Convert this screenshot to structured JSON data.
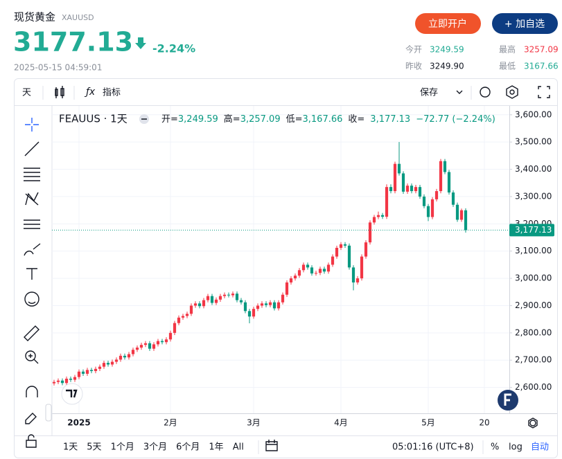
{
  "header": {
    "name": "现货黄金",
    "code": "XAUUSD",
    "price": "3177.13",
    "change": "-2.24%",
    "time": "2025-05-15 04:59:01",
    "buttons": [
      "立即开户",
      "+ 加自选"
    ],
    "stats": [
      {
        "label": "今开",
        "value": "3249.59"
      },
      {
        "label": "最高",
        "value": "3257.09"
      },
      {
        "label": "昨收",
        "value": "3249.90"
      },
      {
        "label": "最低",
        "value": "3167.66"
      }
    ]
  },
  "toolbar": {
    "interval": "天",
    "indicators": "指标",
    "save": "保存"
  },
  "legend": {
    "symbol": "FEAUUS · 1天",
    "items": [
      "开=",
      "3,249.59",
      "高=",
      "3,257.09",
      "低=",
      "3,167.66",
      "收=",
      "3,177.13"
    ],
    "change": "−72.77 (−2.24%)"
  },
  "bottom": {
    "ranges": [
      "1天",
      "5天",
      "1个月",
      "3个月",
      "6个月",
      "1年",
      "All"
    ],
    "clock": "05:01:16 (UTC+8)",
    "percent": "%",
    "log": "log",
    "auto": "自动"
  },
  "chart_data": {
    "type": "candlestick",
    "up_color": "#f23645",
    "down_color": "#089981",
    "grid": true,
    "xlim": [
      -0.5,
      109.5
    ],
    "ylim": [
      2505,
      3632.5
    ],
    "xticks": [
      {
        "value": 6,
        "label": "2025"
      },
      {
        "value": 28,
        "label": "2月"
      },
      {
        "value": 48,
        "label": "3月"
      },
      {
        "value": 69,
        "label": "4月"
      },
      {
        "value": 90,
        "label": "5月"
      },
      {
        "value": 103.5,
        "label": "20"
      }
    ],
    "yticks": [
      {
        "value": 2600,
        "label": "2,600.00"
      },
      {
        "value": 2700,
        "label": "2,700.00"
      },
      {
        "value": 2800,
        "label": "2,800.00"
      },
      {
        "value": 2900,
        "label": "2,900.00"
      },
      {
        "value": 3000,
        "label": "3,000.00"
      },
      {
        "value": 3100,
        "label": "3,100.00"
      },
      {
        "value": 3200,
        "label": "3,200.00"
      },
      {
        "value": 3300,
        "label": "3,300.00"
      },
      {
        "value": 3400,
        "label": "3,400.00"
      },
      {
        "value": 3500,
        "label": "3,500.00"
      },
      {
        "value": 3600,
        "label": "3,600.00"
      }
    ],
    "last_price": {
      "value": 3177.13,
      "label": "3,177.13"
    },
    "open": [
      2615,
      2620,
      2625,
      2616,
      2632,
      2628,
      2638,
      2658,
      2650,
      2664,
      2660,
      2668,
      2676,
      2690,
      2684,
      2694,
      2702,
      2716,
      2710,
      2722,
      2738,
      2746,
      2756,
      2762,
      2742,
      2758,
      2770,
      2766,
      2776,
      2800,
      2836,
      2856,
      2862,
      2870,
      2900,
      2908,
      2898,
      2920,
      2935,
      2910,
      2922,
      2935,
      2940,
      2938,
      2944,
      2920,
      2912,
      2880,
      2860,
      2888,
      2900,
      2908,
      2902,
      2912,
      2890,
      2912,
      2940,
      2985,
      3000,
      3010,
      3030,
      3050,
      3040,
      3018,
      3020,
      3035,
      3025,
      3050,
      3080,
      3112,
      3125,
      3120,
      3040,
      2985,
      3000,
      3080,
      3132,
      3205,
      3225,
      3232,
      3226,
      3335,
      3320,
      3420,
      3385,
      3318,
      3340,
      3320,
      3335,
      3300,
      3265,
      3225,
      3290,
      3320,
      3430,
      3390,
      3315,
      3270,
      3215,
      3249.59
    ],
    "high": [
      2628,
      2633,
      2633,
      2640,
      2640,
      2646,
      2666,
      2666,
      2672,
      2672,
      2676,
      2684,
      2698,
      2698,
      2702,
      2710,
      2724,
      2724,
      2730,
      2746,
      2754,
      2764,
      2770,
      2770,
      2766,
      2778,
      2778,
      2784,
      2808,
      2844,
      2864,
      2870,
      2878,
      2908,
      2916,
      2916,
      2928,
      2943,
      2943,
      2930,
      2943,
      2948,
      2948,
      2952,
      2952,
      2928,
      2920,
      2888,
      2896,
      2908,
      2916,
      2916,
      2920,
      2920,
      2920,
      2948,
      2993,
      3008,
      3018,
      3038,
      3058,
      3058,
      3048,
      3028,
      3043,
      3043,
      3058,
      3088,
      3120,
      3133,
      3133,
      3128,
      3048,
      3008,
      3088,
      3140,
      3213,
      3233,
      3245,
      3240,
      3345,
      3345,
      3428,
      3500,
      3393,
      3348,
      3348,
      3343,
      3343,
      3308,
      3273,
      3298,
      3328,
      3438,
      3438,
      3398,
      3323,
      3278,
      3256,
      3257.09
    ],
    "low": [
      2607,
      2612,
      2608,
      2608,
      2620,
      2620,
      2630,
      2642,
      2642,
      2652,
      2652,
      2660,
      2668,
      2676,
      2676,
      2686,
      2694,
      2702,
      2702,
      2714,
      2730,
      2738,
      2748,
      2734,
      2734,
      2750,
      2758,
      2758,
      2768,
      2792,
      2828,
      2848,
      2854,
      2862,
      2892,
      2890,
      2890,
      2912,
      2902,
      2902,
      2914,
      2927,
      2930,
      2930,
      2912,
      2904,
      2872,
      2835,
      2852,
      2880,
      2892,
      2894,
      2894,
      2882,
      2882,
      2904,
      2932,
      2977,
      2992,
      3002,
      3022,
      3032,
      3010,
      3010,
      3012,
      3017,
      3017,
      3042,
      3072,
      3104,
      3112,
      3032,
      2956,
      2977,
      2992,
      3072,
      3124,
      3197,
      3217,
      3218,
      3218,
      3312,
      3312,
      3377,
      3310,
      3310,
      3312,
      3312,
      3292,
      3257,
      3210,
      3217,
      3282,
      3312,
      3382,
      3307,
      3262,
      3207,
      3207,
      3167.66
    ],
    "close": [
      2620,
      2625,
      2616,
      2632,
      2628,
      2638,
      2658,
      2650,
      2664,
      2660,
      2668,
      2676,
      2690,
      2684,
      2694,
      2702,
      2716,
      2710,
      2722,
      2738,
      2746,
      2756,
      2762,
      2742,
      2758,
      2770,
      2766,
      2776,
      2800,
      2836,
      2856,
      2862,
      2870,
      2900,
      2908,
      2898,
      2920,
      2935,
      2910,
      2922,
      2935,
      2940,
      2938,
      2944,
      2920,
      2912,
      2880,
      2860,
      2888,
      2900,
      2908,
      2902,
      2912,
      2890,
      2912,
      2940,
      2985,
      3000,
      3010,
      3030,
      3050,
      3040,
      3018,
      3020,
      3035,
      3025,
      3050,
      3080,
      3112,
      3125,
      3120,
      3040,
      2985,
      3000,
      3080,
      3132,
      3205,
      3225,
      3232,
      3226,
      3335,
      3320,
      3420,
      3385,
      3318,
      3340,
      3320,
      3335,
      3300,
      3265,
      3225,
      3290,
      3320,
      3430,
      3390,
      3315,
      3270,
      3215,
      3249.9,
      3177.13
    ]
  }
}
